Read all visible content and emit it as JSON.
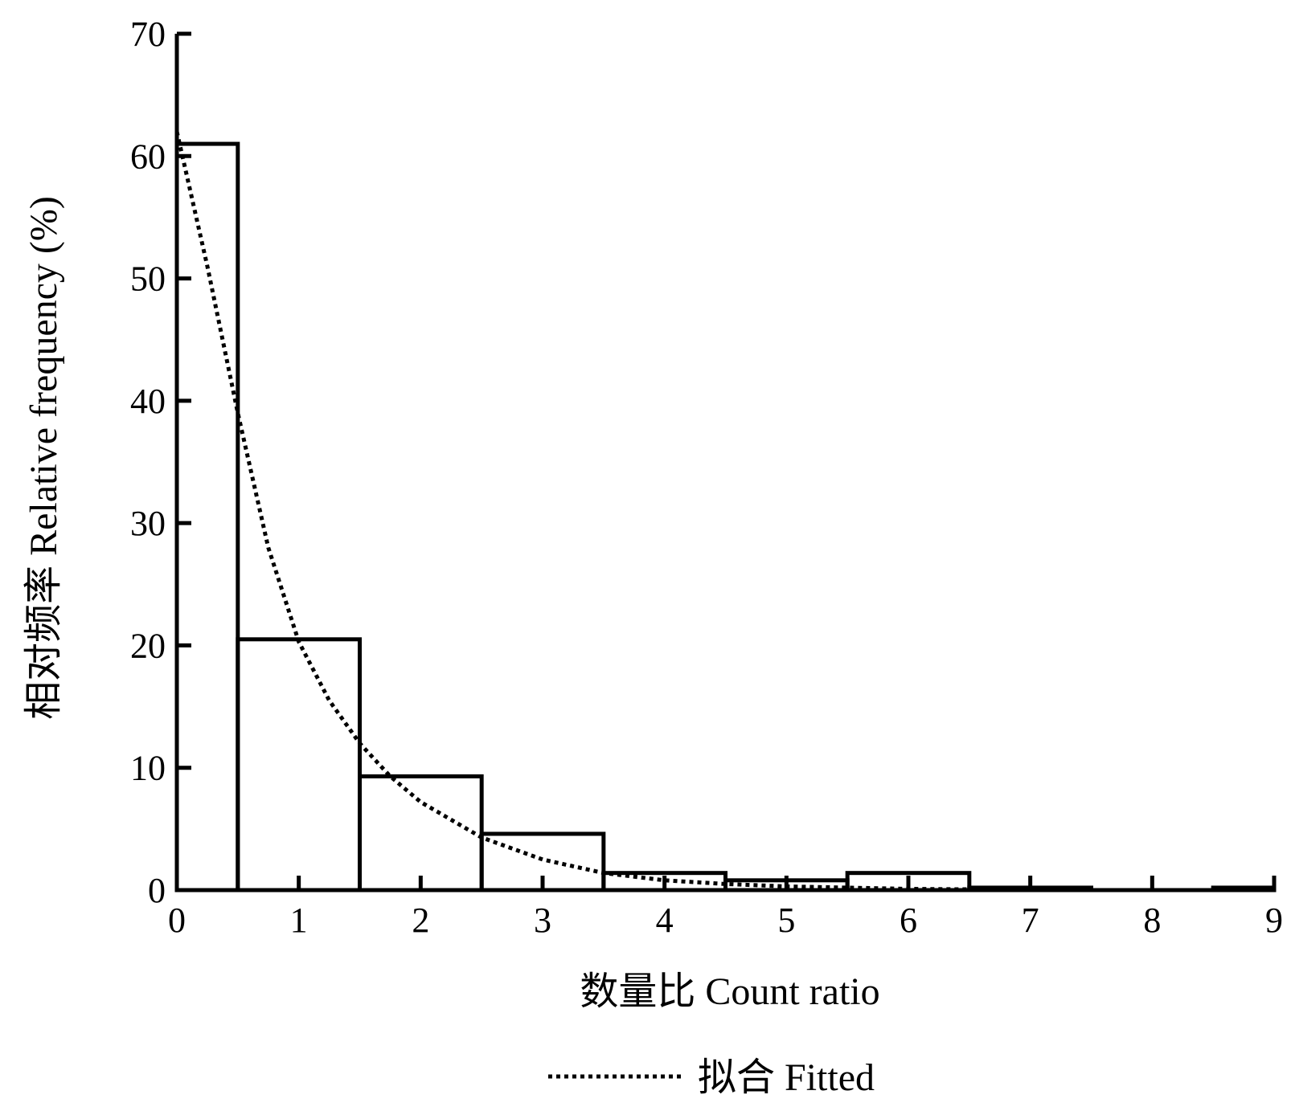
{
  "chart_data": {
    "type": "bar",
    "xlabel": "数量比 Count ratio",
    "ylabel": "相对频率 Relative frequency (%)",
    "xlim": [
      0,
      9
    ],
    "ylim": [
      0,
      70
    ],
    "xticks": [
      0,
      1,
      2,
      3,
      4,
      5,
      6,
      7,
      8,
      9
    ],
    "yticks": [
      0,
      10,
      20,
      30,
      40,
      50,
      60,
      70
    ],
    "grid": false,
    "legend": {
      "placement": "bottom-center"
    },
    "series": [
      {
        "type": "histogram",
        "bin_width": 1,
        "centers": [
          0,
          1,
          2,
          3,
          4,
          5,
          6,
          7,
          8,
          9
        ],
        "values": [
          61,
          20.5,
          9.3,
          4.6,
          1.4,
          0.8,
          1.4,
          0.2,
          0,
          0.2
        ]
      },
      {
        "name": "拟合 Fitted",
        "type": "line",
        "style": "dotted",
        "x": [
          0,
          0.25,
          0.5,
          0.75,
          1,
          1.25,
          1.5,
          1.75,
          2,
          2.5,
          3,
          3.5,
          4,
          4.5,
          5,
          5.5,
          6,
          6.5,
          7
        ],
        "y": [
          62,
          51,
          39,
          28,
          20.3,
          15.5,
          12,
          9.3,
          7.2,
          4.3,
          2.5,
          1.4,
          0.8,
          0.5,
          0.3,
          0.2,
          0.1,
          0.06,
          0.03
        ]
      }
    ]
  }
}
